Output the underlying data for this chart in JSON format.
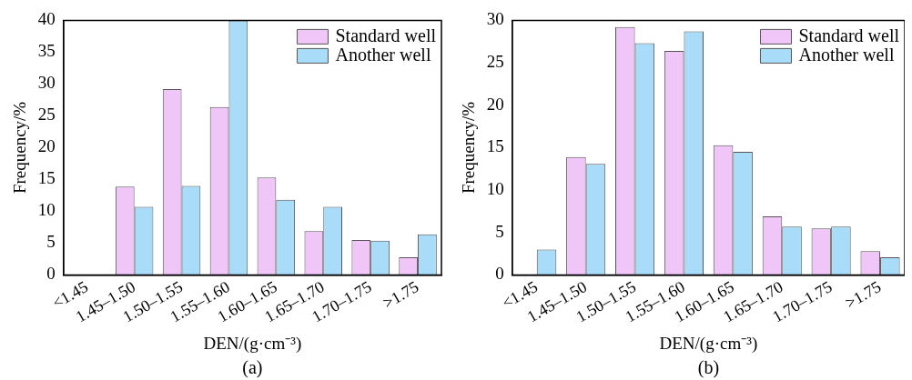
{
  "chart_data": [
    {
      "type": "bar",
      "xlabel": "DEN/(g·cm⁻³)",
      "ylabel": "Frequency/%",
      "annotations": [
        "(a)"
      ],
      "categories": [
        "<1.45",
        "1.45–1.50",
        "1.50–1.55",
        "1.55–1.60",
        "1.60–1.65",
        "1.65–1.70",
        "1.70–1.75",
        ">1.75"
      ],
      "series": [
        {
          "name": "Standard well",
          "color": "#f0c6f8",
          "values": [
            0,
            13.9,
            29.2,
            26.4,
            15.3,
            6.9,
            5.5,
            2.8
          ]
        },
        {
          "name": "Another well",
          "color": "#a8dcf8",
          "values": [
            0,
            10.7,
            14,
            40,
            11.8,
            10.7,
            5.4,
            6.4
          ]
        }
      ],
      "ylim": [
        0,
        40
      ],
      "yticks": [
        0,
        5,
        10,
        15,
        20,
        25,
        30,
        35,
        40
      ],
      "grid": false,
      "legend": "top right"
    },
    {
      "type": "bar",
      "xlabel": "DEN/(g·cm⁻³)",
      "ylabel": "Frequency/%",
      "annotations": [
        "(b)"
      ],
      "categories": [
        "<1.45",
        "1.45–1.50",
        "1.50–1.55",
        "1.55–1.60",
        "1.60–1.65",
        "1.65–1.70",
        "1.70–1.75",
        ">1.75"
      ],
      "series": [
        {
          "name": "Standard well",
          "color": "#f0c6f8",
          "values": [
            0,
            13.9,
            29.2,
            26.4,
            15.3,
            6.9,
            5.5,
            2.8
          ]
        },
        {
          "name": "Another well",
          "color": "#a8dcf8",
          "values": [
            3.0,
            13.1,
            27.3,
            28.7,
            14.5,
            5.7,
            5.7,
            2.1
          ]
        }
      ],
      "ylim": [
        0,
        30
      ],
      "yticks": [
        0,
        5,
        10,
        15,
        20,
        25,
        30
      ],
      "grid": false,
      "legend": "top right"
    }
  ]
}
